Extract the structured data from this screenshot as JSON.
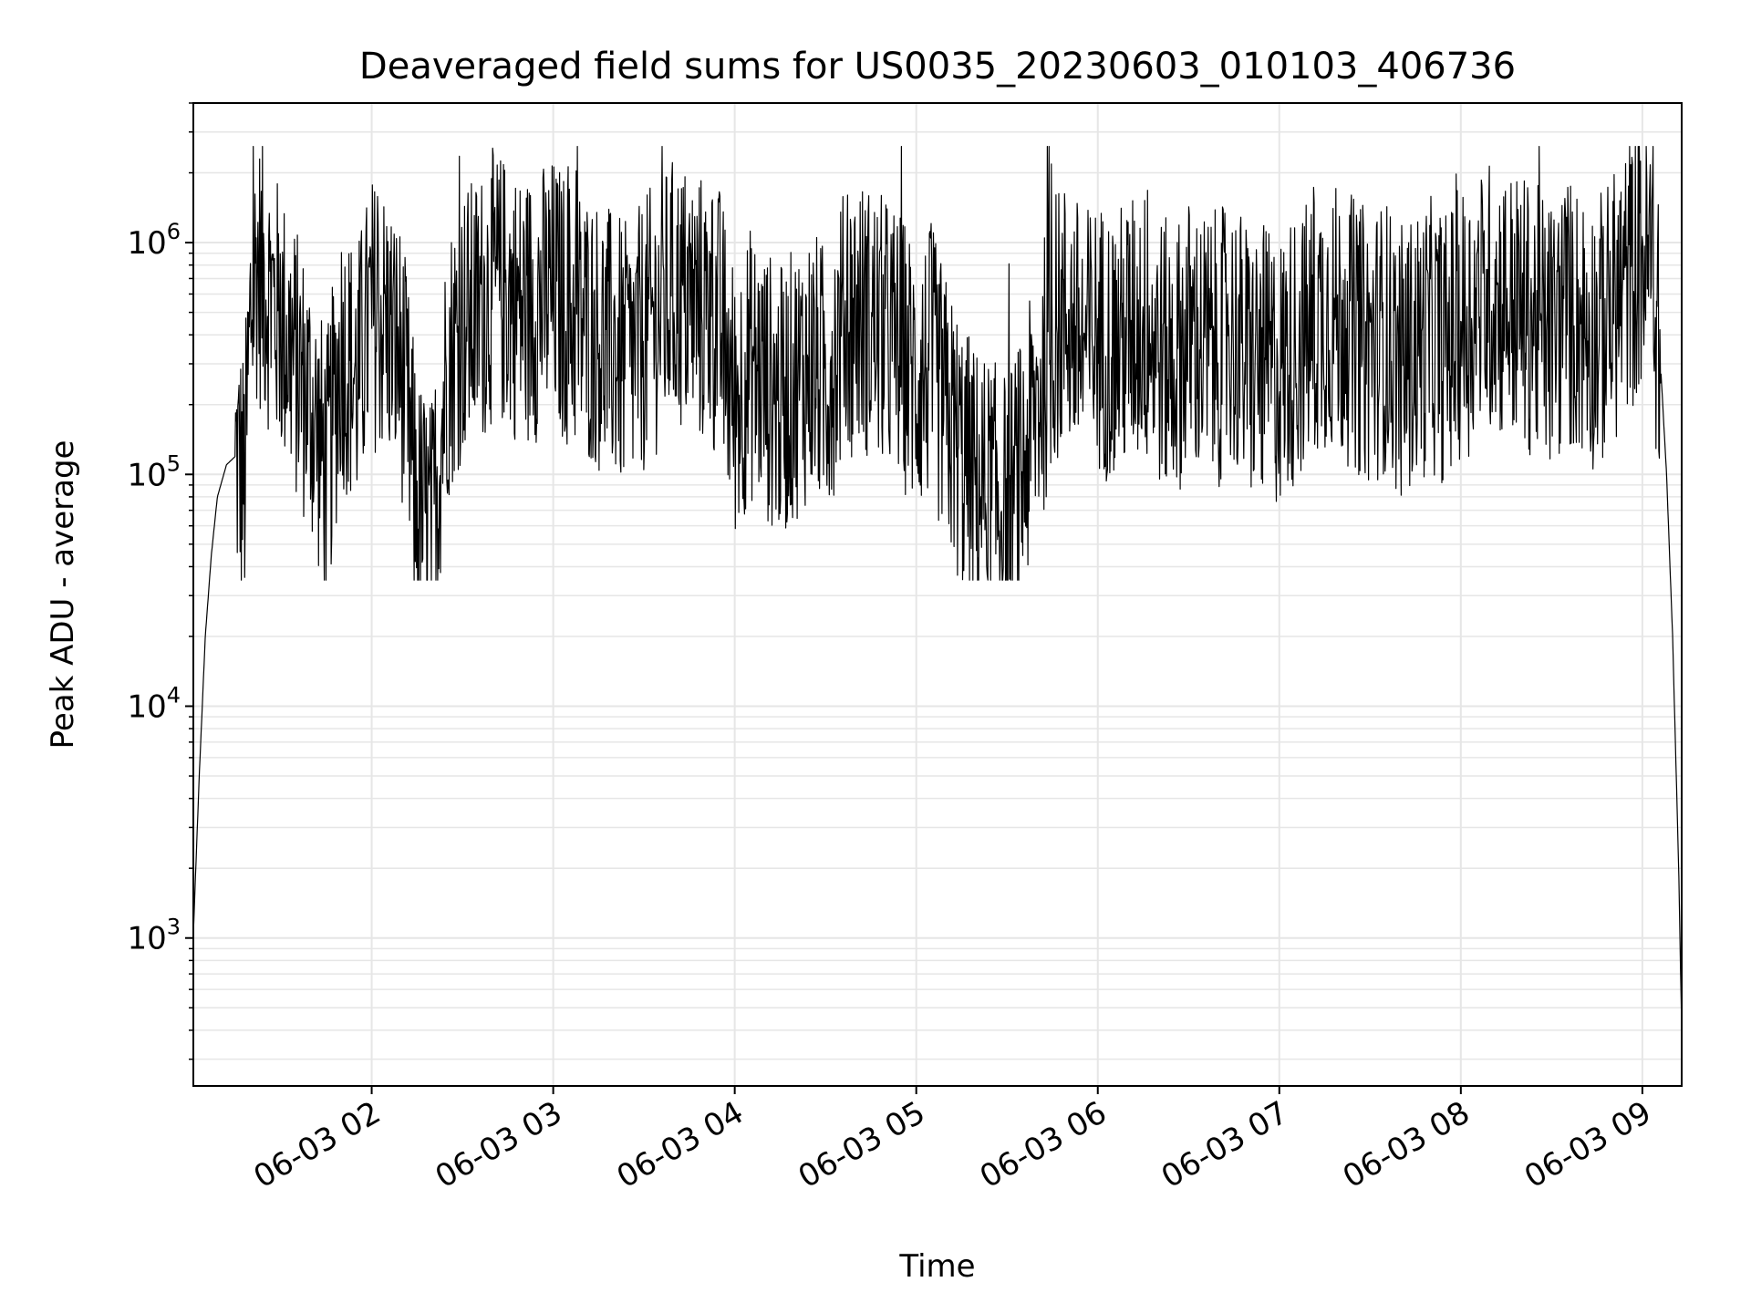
{
  "chart_data": {
    "type": "line",
    "title": "Deaveraged field sums for US0035_20230603_010103_406736",
    "xlabel": "Time",
    "ylabel": "Peak ADU - average",
    "y_scale": "log",
    "ylim": [
      230,
      4000000
    ],
    "xlim": [
      "2023-06-03 01:01:03",
      "2023-06-03 09:13:00"
    ],
    "grid": true,
    "grid_minor": true,
    "line_color": "#000000",
    "grid_color": "#e6e6e6",
    "x_ticks": [
      {
        "t": "2023-06-03 02:00",
        "label": "06-03 02"
      },
      {
        "t": "2023-06-03 03:00",
        "label": "06-03 03"
      },
      {
        "t": "2023-06-03 04:00",
        "label": "06-03 04"
      },
      {
        "t": "2023-06-03 05:00",
        "label": "06-03 05"
      },
      {
        "t": "2023-06-03 06:00",
        "label": "06-03 06"
      },
      {
        "t": "2023-06-03 07:00",
        "label": "06-03 07"
      },
      {
        "t": "2023-06-03 08:00",
        "label": "06-03 08"
      },
      {
        "t": "2023-06-03 09:00",
        "label": "06-03 09"
      }
    ],
    "y_ticks": [
      {
        "value": 1000,
        "base": "10",
        "exp": "3"
      },
      {
        "value": 10000,
        "base": "10",
        "exp": "4"
      },
      {
        "value": 100000,
        "base": "10",
        "exp": "5"
      },
      {
        "value": 1000000,
        "base": "10",
        "exp": "6"
      }
    ],
    "series": [
      {
        "x": [
          "2023-06-03 01:01",
          "2023-06-03 01:03",
          "2023-06-03 01:05",
          "2023-06-03 01:07",
          "2023-06-03 01:09",
          "2023-06-03 01:12",
          "2023-06-03 01:15",
          "2023-06-03 01:18",
          "2023-06-03 01:20",
          "2023-06-03 01:22",
          "2023-06-03 01:26",
          "2023-06-03 01:30",
          "2023-06-03 01:35",
          "2023-06-03 01:40",
          "2023-06-03 01:45",
          "2023-06-03 01:50",
          "2023-06-03 01:55",
          "2023-06-03 02:00",
          "2023-06-03 02:05",
          "2023-06-03 02:10",
          "2023-06-03 02:15",
          "2023-06-03 02:20",
          "2023-06-03 02:25",
          "2023-06-03 02:30",
          "2023-06-03 02:35",
          "2023-06-03 02:40",
          "2023-06-03 02:45",
          "2023-06-03 02:50",
          "2023-06-03 02:55",
          "2023-06-03 03:00",
          "2023-06-03 03:05",
          "2023-06-03 03:10",
          "2023-06-03 03:15",
          "2023-06-03 03:20",
          "2023-06-03 03:25",
          "2023-06-03 03:30",
          "2023-06-03 03:35",
          "2023-06-03 03:40",
          "2023-06-03 03:45",
          "2023-06-03 03:50",
          "2023-06-03 03:55",
          "2023-06-03 04:00",
          "2023-06-03 04:05",
          "2023-06-03 04:10",
          "2023-06-03 04:15",
          "2023-06-03 04:20",
          "2023-06-03 04:25",
          "2023-06-03 04:30",
          "2023-06-03 04:35",
          "2023-06-03 04:40",
          "2023-06-03 04:45",
          "2023-06-03 04:50",
          "2023-06-03 04:55",
          "2023-06-03 05:00",
          "2023-06-03 05:05",
          "2023-06-03 05:10",
          "2023-06-03 05:15",
          "2023-06-03 05:20",
          "2023-06-03 05:25",
          "2023-06-03 05:30",
          "2023-06-03 05:35",
          "2023-06-03 05:40",
          "2023-06-03 05:45",
          "2023-06-03 05:50",
          "2023-06-03 05:55",
          "2023-06-03 06:00",
          "2023-06-03 06:05",
          "2023-06-03 06:10",
          "2023-06-03 06:15",
          "2023-06-03 06:20",
          "2023-06-03 06:25",
          "2023-06-03 06:30",
          "2023-06-03 06:35",
          "2023-06-03 06:40",
          "2023-06-03 06:45",
          "2023-06-03 06:50",
          "2023-06-03 06:55",
          "2023-06-03 07:00",
          "2023-06-03 07:05",
          "2023-06-03 07:10",
          "2023-06-03 07:15",
          "2023-06-03 07:20",
          "2023-06-03 07:25",
          "2023-06-03 07:30",
          "2023-06-03 07:35",
          "2023-06-03 07:40",
          "2023-06-03 07:45",
          "2023-06-03 07:50",
          "2023-06-03 07:55",
          "2023-06-03 08:00",
          "2023-06-03 08:05",
          "2023-06-03 08:10",
          "2023-06-03 08:15",
          "2023-06-03 08:20",
          "2023-06-03 08:25",
          "2023-06-03 08:30",
          "2023-06-03 08:35",
          "2023-06-03 08:40",
          "2023-06-03 08:45",
          "2023-06-03 08:50",
          "2023-06-03 08:55",
          "2023-06-03 09:00",
          "2023-06-03 09:03",
          "2023-06-03 09:06",
          "2023-06-03 09:08",
          "2023-06-03 09:10",
          "2023-06-03 09:12",
          "2023-06-03 09:13"
        ],
        "y": [
          1000,
          5000,
          20000,
          45000,
          80000,
          110000,
          120000,
          90000,
          500000,
          800000,
          600000,
          450000,
          300000,
          200000,
          100000,
          350000,
          250000,
          500000,
          450000,
          300000,
          70000,
          55000,
          300000,
          450000,
          500000,
          650000,
          600000,
          500000,
          550000,
          600000,
          500000,
          450000,
          400000,
          350000,
          300000,
          400000,
          500000,
          600000,
          550000,
          500000,
          450000,
          200000,
          300000,
          250000,
          200000,
          250000,
          300000,
          250000,
          400000,
          500000,
          450000,
          400000,
          350000,
          250000,
          300000,
          180000,
          120000,
          90000,
          80000,
          70000,
          100000,
          200000,
          400000,
          500000,
          350000,
          400000,
          350000,
          400000,
          450000,
          350000,
          300000,
          400000,
          350000,
          350000,
          400000,
          300000,
          300000,
          280000,
          350000,
          400000,
          500000,
          450000,
          400000,
          350000,
          400000,
          300000,
          350000,
          400000,
          350000,
          450000,
          500000,
          600000,
          550000,
          500000,
          450000,
          400000,
          500000,
          450000,
          400000,
          500000,
          700000,
          900000,
          800000,
          300000,
          100000,
          20000,
          2000,
          400
        ]
      }
    ]
  }
}
